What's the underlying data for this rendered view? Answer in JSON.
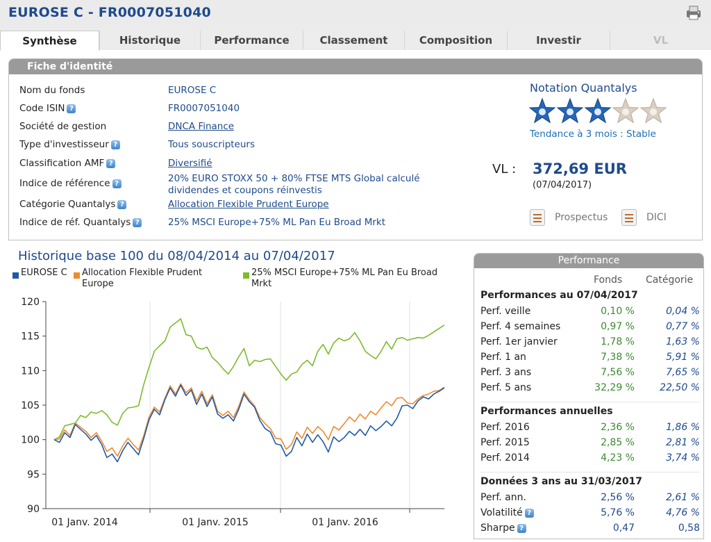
{
  "header": {
    "title": "EUROSE C - FR0007051040"
  },
  "tabs": [
    {
      "label": "Synthèse",
      "active": true
    },
    {
      "label": "Historique"
    },
    {
      "label": "Performance"
    },
    {
      "label": "Classement"
    },
    {
      "label": "Composition"
    },
    {
      "label": "Investir"
    },
    {
      "label": "VL",
      "disabled": true
    }
  ],
  "fiche": {
    "title": "Fiche d'identité",
    "rows": [
      {
        "label": "Nom du fonds",
        "value": "EUROSE C"
      },
      {
        "label": "Code ISIN",
        "value": "FR0007051040"
      },
      {
        "label": "Société de gestion",
        "value": "DNCA Finance"
      },
      {
        "label": "Type d'investisseur",
        "value": "Tous souscripteurs"
      },
      {
        "label": "Classification AMF",
        "value": "Diversifié"
      },
      {
        "label": "Indice de référence",
        "value": "20% EURO STOXX 50 + 80% FTSE MTS Global calculé dividendes et coupons réinvestis"
      },
      {
        "label": "Catégorie Quantalys",
        "value": "Allocation Flexible Prudent Europe"
      },
      {
        "label": "Indice de réf. Quantalys",
        "value": "25% MSCI Europe+75% ML Pan Eu Broad Mrkt"
      }
    ]
  },
  "notation": {
    "title": "Notation Quantalys",
    "stars_filled": 3,
    "stars_total": 5,
    "trend": "Tendance à 3 mois : Stable"
  },
  "vl": {
    "label": "VL :",
    "value": "372,69 EUR",
    "date": "(07/04/2017)"
  },
  "documents": {
    "prospectus": "Prospectus",
    "dici": "DICI"
  },
  "history": {
    "title": "Historique base 100 du 08/04/2014 au 07/04/2017"
  },
  "chart_data": {
    "type": "line",
    "ylim": [
      90,
      120
    ],
    "yticks": [
      "90",
      "95",
      "100",
      "105",
      "110",
      "115",
      "120"
    ],
    "xticks": [
      "01 Janv. 2014",
      "01 Janv. 2015",
      "01 Janv. 2016"
    ],
    "grid": "vertical",
    "legend_position": "top",
    "series": [
      {
        "name": "EUROSE C",
        "color": "#1f5aa6",
        "values": [
          100,
          99.6,
          101,
          100.3,
          102.2,
          101.5,
          100.8,
          99.9,
          100.6,
          99.3,
          97.4,
          97.9,
          96.8,
          98.4,
          99.6,
          98.7,
          97.8,
          100.2,
          102.9,
          104.4,
          103.6,
          105.8,
          107.5,
          106.3,
          107.9,
          106.4,
          107.2,
          105.1,
          106.6,
          104.8,
          106.2,
          103.7,
          103.1,
          103.6,
          102.7,
          104.4,
          106.6,
          105.5,
          104.7,
          102.8,
          101.6,
          101.1,
          99.4,
          99.2,
          97.6,
          98.3,
          100.3,
          99.1,
          100.8,
          99.6,
          100.7,
          99.7,
          98.2,
          100.4,
          99.7,
          100.3,
          101.2,
          100.6,
          101.5,
          100.6,
          102.0,
          101.3,
          101.9,
          102.7,
          102.0,
          103.1,
          104.9,
          105.0,
          104.5,
          105.6,
          106.2,
          105.9,
          106.6,
          107.0,
          107.5
        ]
      },
      {
        "name": "Allocation Flexible Prudent Europe",
        "color": "#f08a2c",
        "values": [
          100,
          100.1,
          101.4,
          100.6,
          102.4,
          101.8,
          101.2,
          100.3,
          101.0,
          99.8,
          98.3,
          98.8,
          97.6,
          99.1,
          100.2,
          99.3,
          98.5,
          100.6,
          103.3,
          104.7,
          104.0,
          106.0,
          107.8,
          106.6,
          108.1,
          106.8,
          107.5,
          105.6,
          107.0,
          105.2,
          106.5,
          104.1,
          103.5,
          104.1,
          103.2,
          104.8,
          106.9,
          105.8,
          104.9,
          103.2,
          102.3,
          101.6,
          100.2,
          100.1,
          98.6,
          99.3,
          101.1,
          100.2,
          101.8,
          100.9,
          101.9,
          101.2,
          100.0,
          101.9,
          101.4,
          102.3,
          103.3,
          102.6,
          103.7,
          103.0,
          104.1,
          103.6,
          104.6,
          105.5,
          104.9,
          106.0,
          106.1,
          105.3,
          105.2,
          105.9,
          106.4,
          106.6,
          107.0,
          107.1,
          107.6
        ]
      },
      {
        "name": "25% MSCI Europe+75% ML Pan Eu Broad Mrkt",
        "color": "#7cbc2a",
        "values": [
          100,
          100.4,
          102.0,
          102.2,
          102.4,
          103.5,
          103.2,
          104.0,
          103.8,
          104.2,
          103.6,
          102.5,
          102.1,
          103.8,
          104.6,
          104.7,
          104.9,
          108.0,
          110.5,
          112.8,
          113.6,
          114.3,
          116.3,
          116.9,
          117.5,
          115.2,
          115.0,
          113.4,
          113.1,
          113.4,
          111.9,
          111.2,
          110.3,
          109.5,
          110.6,
          112.0,
          113.2,
          110.7,
          111.5,
          111.3,
          111.6,
          111.7,
          110.6,
          109.5,
          108.6,
          109.5,
          109.8,
          110.9,
          111.5,
          110.7,
          112.8,
          113.8,
          112.4,
          114.0,
          114.7,
          114.3,
          114.6,
          115.5,
          114.3,
          112.8,
          112.2,
          111.7,
          112.8,
          114.2,
          113.1,
          114.6,
          114.8,
          114.4,
          114.6,
          114.8,
          114.7,
          115.1,
          115.6,
          116.1,
          116.6
        ]
      }
    ]
  },
  "performance": {
    "title": "Performance",
    "col_fonds": "Fonds",
    "col_categorie": "Catégorie",
    "sections": [
      {
        "title": "Performances au 07/04/2017",
        "rows": [
          {
            "label": "Perf. veille",
            "fonds": "0,10 %",
            "cat": "0,04 %"
          },
          {
            "label": "Perf. 4 semaines",
            "fonds": "0,97 %",
            "cat": "0,77 %"
          },
          {
            "label": "Perf. 1er janvier",
            "fonds": "1,78 %",
            "cat": "1,63 %"
          },
          {
            "label": "Perf. 1 an",
            "fonds": "7,38 %",
            "cat": "5,91 %"
          },
          {
            "label": "Perf. 3 ans",
            "fonds": "7,56 %",
            "cat": "7,65 %"
          },
          {
            "label": "Perf. 5 ans",
            "fonds": "32,29 %",
            "cat": "22,50 %"
          }
        ]
      },
      {
        "title": "Performances annuelles",
        "rows": [
          {
            "label": "Perf. 2016",
            "fonds": "2,36 %",
            "cat": "1,86 %"
          },
          {
            "label": "Perf. 2015",
            "fonds": "2,85 %",
            "cat": "2,81 %"
          },
          {
            "label": "Perf. 2014",
            "fonds": "4,23 %",
            "cat": "3,74 %"
          }
        ]
      },
      {
        "title": "Données 3 ans au 31/03/2017",
        "rows": [
          {
            "label": "Perf. ann.",
            "fonds": "2,56 %",
            "cat": "2,61 %"
          },
          {
            "label": "Volatilité",
            "fonds": "5,76 %",
            "cat": "4,76 %"
          },
          {
            "label": "Sharpe",
            "fonds": "0,47",
            "cat": "0,58"
          }
        ]
      }
    ]
  }
}
